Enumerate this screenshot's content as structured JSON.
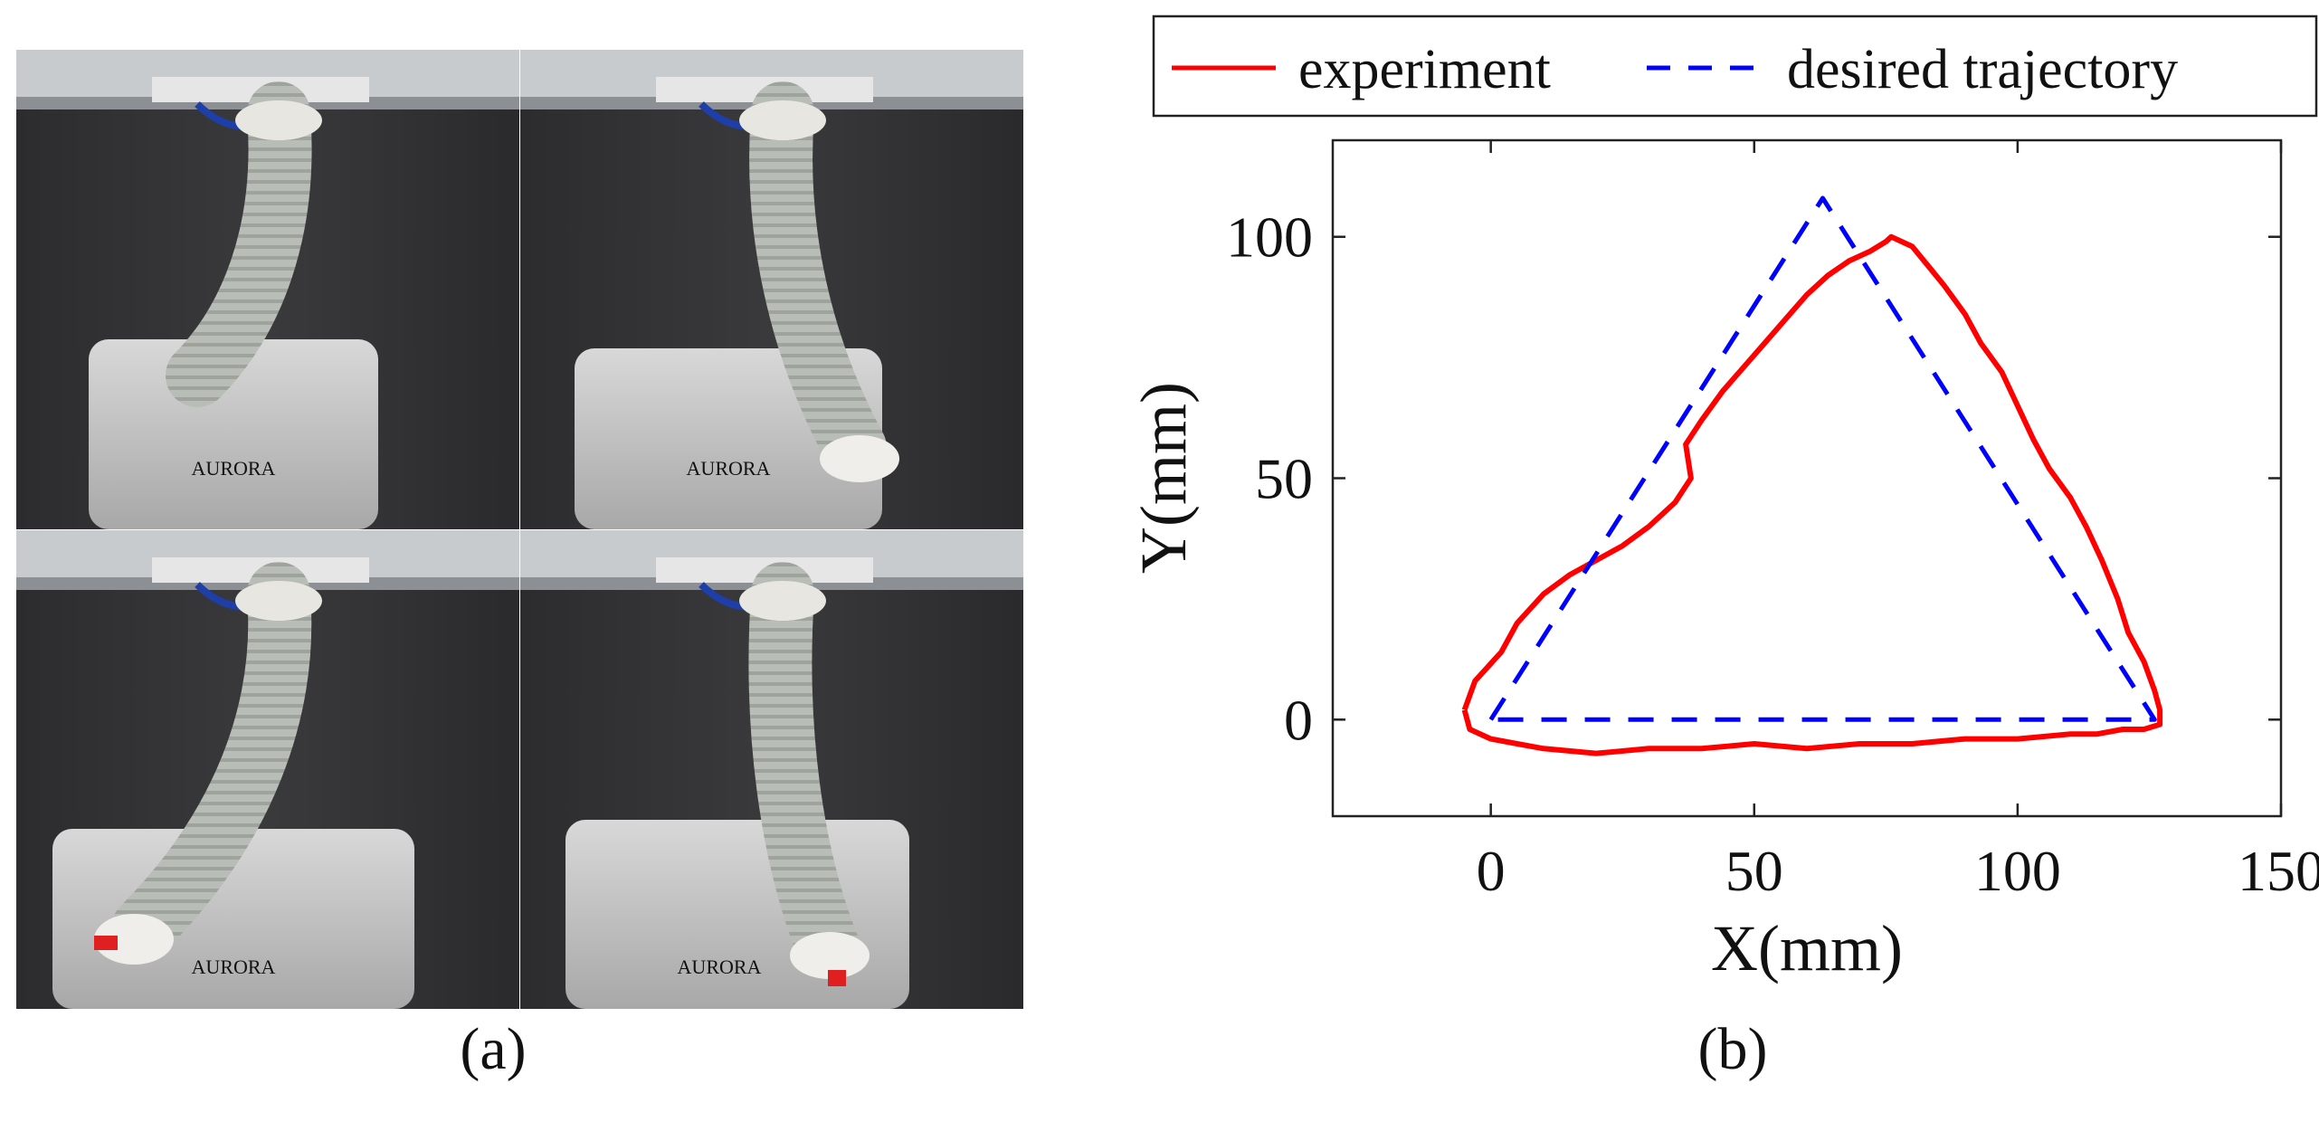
{
  "captions": {
    "a": "(a)",
    "b": "(b)"
  },
  "photo_panel": {
    "logo_text": [
      "AURORA",
      "AURORA",
      "AURORA",
      "AURORA"
    ]
  },
  "colors": {
    "experiment": "#ff0000",
    "desired": "#0000ff"
  },
  "chart_data": {
    "type": "line",
    "xlabel": "X(mm)",
    "ylabel": "Y(mm)",
    "xlim": [
      -30,
      150
    ],
    "ylim": [
      -20,
      120
    ],
    "xticks": [
      0,
      50,
      100,
      150
    ],
    "yticks": [
      0,
      50,
      100
    ],
    "grid": false,
    "legend_position": "top, outside plot",
    "series": [
      {
        "name": "experiment",
        "style": "solid",
        "x": [
          -5,
          -3,
          2,
          5,
          10,
          15,
          20,
          25,
          30,
          35,
          38,
          37,
          40,
          44,
          48,
          52,
          56,
          60,
          64,
          68,
          72,
          75,
          76,
          80,
          83,
          86,
          90,
          93,
          97,
          100,
          103,
          106,
          110,
          113,
          116,
          119,
          121,
          124,
          126,
          127,
          127,
          124,
          120,
          115,
          110,
          100,
          90,
          80,
          70,
          60,
          50,
          40,
          30,
          20,
          10,
          5,
          0,
          -4,
          -5
        ],
        "y": [
          2,
          8,
          14,
          20,
          26,
          30,
          33,
          36,
          40,
          45,
          50,
          57,
          62,
          68,
          73,
          78,
          83,
          88,
          92,
          95,
          97,
          99,
          100,
          98,
          94,
          90,
          84,
          78,
          72,
          65,
          58,
          52,
          46,
          40,
          33,
          25,
          18,
          12,
          6,
          2,
          -1,
          -2,
          -2,
          -3,
          -3,
          -4,
          -4,
          -5,
          -5,
          -6,
          -5,
          -6,
          -6,
          -7,
          -6,
          -5,
          -4,
          -2,
          2
        ]
      },
      {
        "name": "desired trajectory",
        "style": "dashed",
        "x": [
          0,
          63,
          126,
          0
        ],
        "y": [
          0,
          108,
          0,
          0
        ]
      }
    ]
  }
}
